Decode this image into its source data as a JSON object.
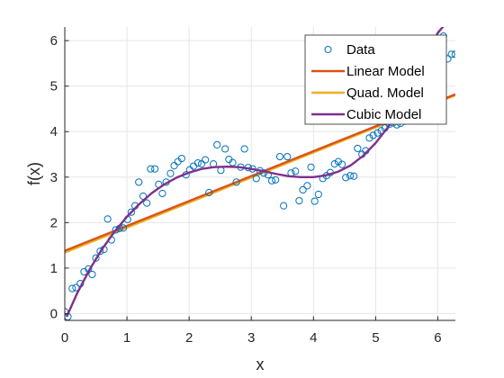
{
  "chart_data": {
    "type": "scatter",
    "xlabel": "x",
    "ylabel": "f(x)",
    "xlim": [
      0,
      6.283
    ],
    "ylim": [
      -0.15,
      6.3
    ],
    "xticks": [
      0,
      1,
      2,
      3,
      4,
      5,
      6
    ],
    "yticks": [
      0,
      1,
      2,
      3,
      4,
      5,
      6
    ],
    "grid": true,
    "legend_position": "top-right",
    "legend": [
      "Data",
      "Linear Model",
      "Quad. Model",
      "Cubic Model"
    ],
    "series": [
      {
        "name": "Data",
        "kind": "markers",
        "color": "#0072BD",
        "x": [
          0.0,
          0.05,
          0.12,
          0.18,
          0.25,
          0.31,
          0.38,
          0.44,
          0.5,
          0.57,
          0.63,
          0.69,
          0.75,
          0.82,
          0.88,
          0.94,
          1.01,
          1.07,
          1.13,
          1.19,
          1.26,
          1.32,
          1.38,
          1.45,
          1.51,
          1.57,
          1.63,
          1.7,
          1.76,
          1.82,
          1.88,
          1.95,
          2.01,
          2.07,
          2.14,
          2.2,
          2.26,
          2.32,
          2.39,
          2.45,
          2.51,
          2.58,
          2.64,
          2.7,
          2.76,
          2.83,
          2.89,
          2.95,
          3.02,
          3.08,
          3.14,
          3.2,
          3.27,
          3.33,
          3.39,
          3.46,
          3.52,
          3.58,
          3.64,
          3.71,
          3.77,
          3.83,
          3.9,
          3.96,
          4.02,
          4.08,
          4.15,
          4.21,
          4.27,
          4.34,
          4.4,
          4.46,
          4.52,
          4.59,
          4.65,
          4.71,
          4.78,
          4.84,
          4.9,
          4.96,
          5.03,
          5.09,
          5.15,
          5.22,
          5.28,
          5.34,
          5.4,
          5.47,
          5.53,
          5.59,
          5.65,
          5.72,
          5.78,
          5.84,
          5.91,
          5.97,
          6.03,
          6.09,
          6.16,
          6.22,
          6.28
        ],
        "y": [
          0.04,
          -0.07,
          0.55,
          0.57,
          0.66,
          0.92,
          0.98,
          0.86,
          1.22,
          1.37,
          1.41,
          2.08,
          1.62,
          1.84,
          1.87,
          1.88,
          2.07,
          2.23,
          2.37,
          2.89,
          2.58,
          2.43,
          3.18,
          3.18,
          2.84,
          2.64,
          2.89,
          3.08,
          3.25,
          3.34,
          3.41,
          3.05,
          3.16,
          3.24,
          3.31,
          3.29,
          3.38,
          2.66,
          3.29,
          3.71,
          3.15,
          3.62,
          3.39,
          3.32,
          2.89,
          3.22,
          3.62,
          3.21,
          3.18,
          2.97,
          3.14,
          3.09,
          3.05,
          2.92,
          2.94,
          3.45,
          2.37,
          3.45,
          3.09,
          3.13,
          2.48,
          2.72,
          2.81,
          3.22,
          2.47,
          2.62,
          2.97,
          3.03,
          3.1,
          3.29,
          3.34,
          3.28,
          2.99,
          3.03,
          3.02,
          3.63,
          3.5,
          3.58,
          3.86,
          3.92,
          3.97,
          4.02,
          4.08,
          4.16,
          4.19,
          4.15,
          4.18,
          4.23,
          4.27,
          4.35,
          4.4,
          4.45,
          4.52,
          4.6,
          4.7,
          4.85,
          5.35,
          6.1,
          5.6,
          5.7,
          5.7
        ]
      },
      {
        "name": "Linear Model",
        "kind": "line",
        "color": "#D95319",
        "x": [
          0,
          6.283
        ],
        "y": [
          1.38,
          4.82
        ]
      },
      {
        "name": "Quad. Model",
        "kind": "line",
        "color": "#EDB120",
        "x": [
          0,
          6.283
        ],
        "y": [
          1.34,
          4.8
        ]
      },
      {
        "name": "Cubic Model",
        "kind": "line",
        "color": "#7E2F8E",
        "x": [
          0.03,
          0.2,
          0.4,
          0.6,
          0.8,
          1.0,
          1.2,
          1.4,
          1.6,
          1.8,
          2.0,
          2.2,
          2.4,
          2.6,
          2.8,
          3.0,
          3.2,
          3.4,
          3.6,
          3.8,
          4.0,
          4.2,
          4.4,
          4.6,
          4.8,
          5.0,
          5.2,
          5.4,
          5.6,
          5.8,
          6.0,
          6.2,
          6.283
        ],
        "y": [
          -0.07,
          0.45,
          0.97,
          1.42,
          1.8,
          2.13,
          2.41,
          2.65,
          2.84,
          2.99,
          3.1,
          3.18,
          3.22,
          3.23,
          3.22,
          3.18,
          3.13,
          3.07,
          3.02,
          3.0,
          3.0,
          3.04,
          3.12,
          3.26,
          3.47,
          3.75,
          4.1,
          4.54,
          5.05,
          5.62,
          6.17,
          6.5,
          6.7
        ]
      }
    ]
  }
}
